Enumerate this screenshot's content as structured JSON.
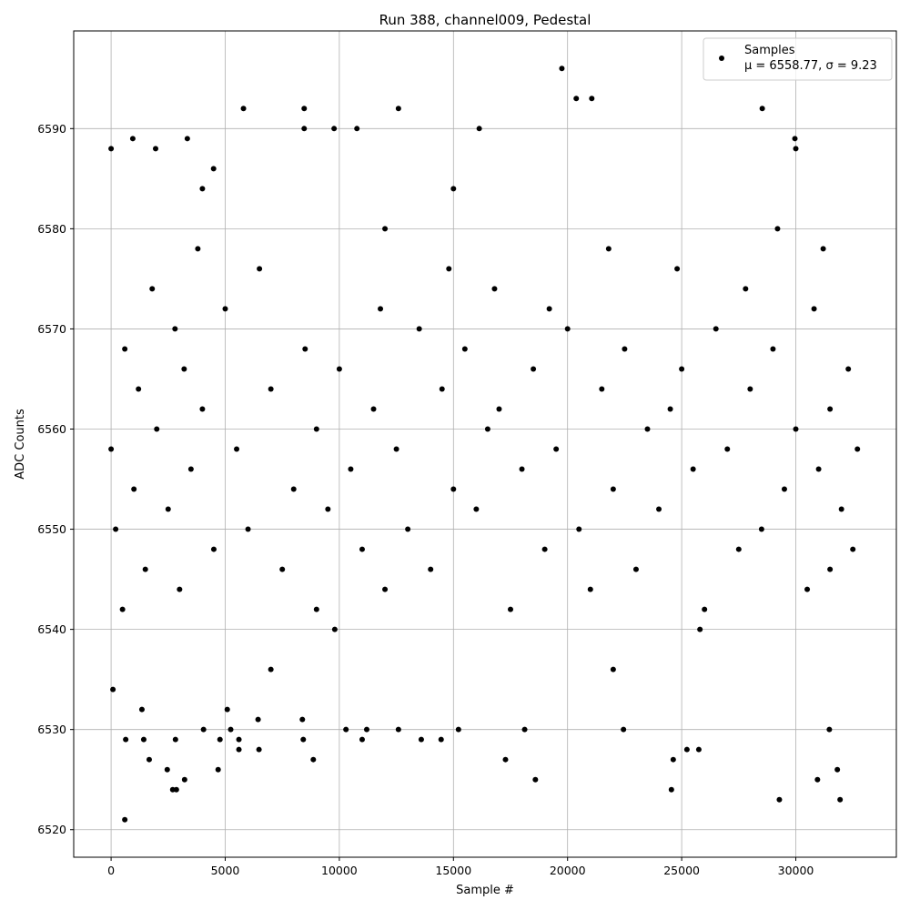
{
  "chart_data": {
    "type": "scatter",
    "title": "Run 388, channel009, Pedestal",
    "x_label": "Sample #",
    "y_label": "ADC Counts",
    "legend_note": "μ = 6558.77, σ = 9.23",
    "legend_position": "upper right",
    "grid": true,
    "xlim": [
      -1638.35,
      34405.35
    ],
    "ylim": [
      6517.25,
      6599.75
    ],
    "xticks": [
      0,
      5000,
      10000,
      15000,
      20000,
      25000,
      30000
    ],
    "yticks": [
      6520,
      6530,
      6540,
      6550,
      6560,
      6570,
      6580,
      6590
    ],
    "series": [
      {
        "name": "Samples",
        "color": "#000000",
        "x": [
          0,
          80,
          600,
          640,
          950,
          1350,
          1430,
          1670,
          1950,
          2460,
          2700,
          2860,
          2820,
          3220,
          3340,
          4050,
          4490,
          4690,
          4770,
          5090,
          5240,
          5600,
          5600,
          5800,
          6440,
          6480,
          8460,
          8460,
          8380,
          8420,
          8860,
          9770,
          10290,
          10770,
          11000,
          11200,
          12590,
          12590,
          13590,
          14460,
          15220,
          16130,
          17280,
          18120,
          18590,
          19750,
          20380,
          21060,
          22450,
          24550,
          24630,
          25230,
          25750,
          28530,
          29280,
          29960,
          30950,
          31470,
          31820,
          31940,
          30000,
          500,
          9000,
          17500,
          26000,
          3000,
          12000,
          21000,
          30500,
          1500,
          7500,
          14000,
          23000,
          31500,
          4500,
          11000,
          19000,
          27500,
          32500,
          200,
          6000,
          13000,
          20500,
          28500,
          2500,
          9500,
          16000,
          24000,
          32000,
          1000,
          8000,
          15000,
          22000,
          29500,
          3500,
          10500,
          18000,
          25500,
          31000,
          0,
          5500,
          12500,
          19500,
          27000,
          32700,
          2000,
          9000,
          16500,
          23500,
          30000,
          4000,
          11500,
          17000,
          24500,
          31500,
          1200,
          7000,
          14500,
          21500,
          28000,
          3200,
          10000,
          18500,
          25000,
          32300,
          600,
          8500,
          15500,
          22500,
          29000,
          2800,
          13500,
          20000,
          26500,
          5000,
          11800,
          19200,
          30800,
          1800,
          16800,
          27800,
          6500,
          14800,
          24800,
          3800,
          21800,
          31200,
          9800,
          25800,
          12000,
          29200,
          7000,
          22000,
          15000,
          4000
        ],
        "values": [
          6588,
          6534,
          6521,
          6529,
          6589,
          6532,
          6529,
          6527,
          6588,
          6526,
          6524,
          6524,
          6529,
          6525,
          6589,
          6530,
          6586,
          6526,
          6529,
          6532,
          6530,
          6529,
          6528,
          6592,
          6531,
          6528,
          6592,
          6590,
          6531,
          6529,
          6527,
          6590,
          6530,
          6590,
          6529,
          6530,
          6592,
          6530,
          6529,
          6529,
          6530,
          6590,
          6527,
          6530,
          6525,
          6596,
          6593,
          6593,
          6530,
          6524,
          6527,
          6528,
          6528,
          6592,
          6523,
          6589,
          6525,
          6530,
          6526,
          6523,
          6588,
          6542,
          6542,
          6542,
          6542,
          6544,
          6544,
          6544,
          6544,
          6546,
          6546,
          6546,
          6546,
          6546,
          6548,
          6548,
          6548,
          6548,
          6548,
          6550,
          6550,
          6550,
          6550,
          6550,
          6552,
          6552,
          6552,
          6552,
          6552,
          6554,
          6554,
          6554,
          6554,
          6554,
          6556,
          6556,
          6556,
          6556,
          6556,
          6558,
          6558,
          6558,
          6558,
          6558,
          6558,
          6560,
          6560,
          6560,
          6560,
          6560,
          6562,
          6562,
          6562,
          6562,
          6562,
          6564,
          6564,
          6564,
          6564,
          6564,
          6566,
          6566,
          6566,
          6566,
          6566,
          6568,
          6568,
          6568,
          6568,
          6568,
          6570,
          6570,
          6570,
          6570,
          6572,
          6572,
          6572,
          6572,
          6574,
          6574,
          6574,
          6576,
          6576,
          6576,
          6578,
          6578,
          6578,
          6540,
          6540,
          6580,
          6580,
          6536,
          6536,
          6584,
          6584
        ]
      }
    ]
  }
}
